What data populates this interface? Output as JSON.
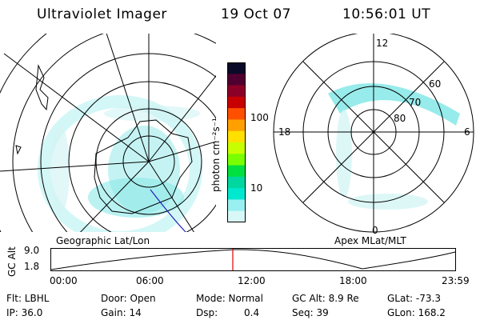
{
  "header": {
    "title": "Ultraviolet Imager",
    "date": "19 Oct 07",
    "time": "10:56:01 UT"
  },
  "left_panel": {
    "caption": "Geographic Lat/Lon"
  },
  "right_panel": {
    "caption": "Apex MLat/MLT",
    "hour_labels": {
      "top": "12",
      "right": "6",
      "bottom": "0",
      "left": "18"
    },
    "lat_labels": [
      "60",
      "70",
      "80"
    ]
  },
  "colorbar": {
    "unit_label": "photon cm⁻²s⁻¹",
    "tick_labels": [
      "100",
      "10"
    ],
    "colors": [
      "#0a0a28",
      "#500030",
      "#8c0028",
      "#c80000",
      "#ff5000",
      "#ffa000",
      "#ffe000",
      "#c8ff00",
      "#7aff00",
      "#00e040",
      "#00d8a0",
      "#00e8d0",
      "#9af0f0",
      "#d8f8f8"
    ]
  },
  "altitude_plot": {
    "ylabel": "GC Alt",
    "y_ticks": [
      "9.0",
      "1.8"
    ],
    "x_ticks": [
      "00:00",
      "06:00",
      "12:00",
      "18:00",
      "23:59"
    ],
    "marker_color": "#e00000"
  },
  "footer": {
    "row1": {
      "flt": "Flt: LBHL",
      "door": "Door: Open",
      "mode": "Mode: Normal",
      "gcalt": "GC Alt: 8.9 Re",
      "glat": "GLat: -73.3"
    },
    "row2": {
      "ip": "IP: 36.0",
      "gain": "Gain: 14",
      "dsp_label": "Dsp:",
      "dsp_value": "0.4",
      "seq": "Seq: 39",
      "glon": "GLon: 168.2"
    }
  }
}
